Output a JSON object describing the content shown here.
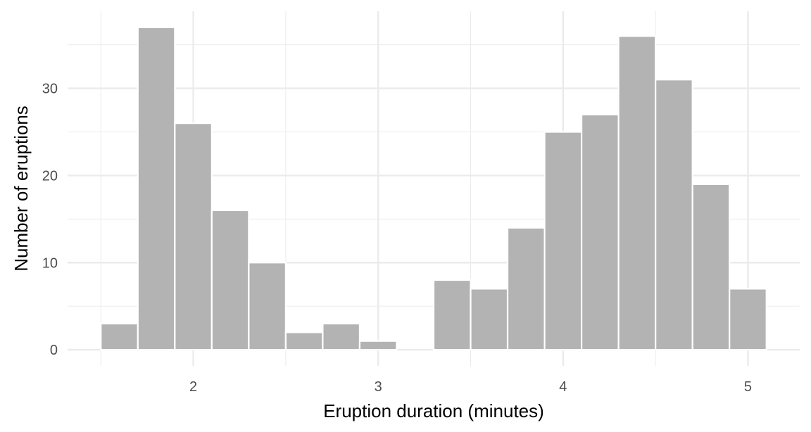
{
  "chart_data": {
    "type": "bar",
    "subtype": "histogram",
    "title": "",
    "xlabel": "Eruption duration (minutes)",
    "ylabel": "Number of eruptions",
    "bin_width": 0.2,
    "bins": [
      {
        "start": 1.5,
        "end": 1.7,
        "count": 3
      },
      {
        "start": 1.7,
        "end": 1.9,
        "count": 37
      },
      {
        "start": 1.9,
        "end": 2.1,
        "count": 26
      },
      {
        "start": 2.1,
        "end": 2.3,
        "count": 16
      },
      {
        "start": 2.3,
        "end": 2.5,
        "count": 10
      },
      {
        "start": 2.5,
        "end": 2.7,
        "count": 2
      },
      {
        "start": 2.7,
        "end": 2.9,
        "count": 3
      },
      {
        "start": 2.9,
        "end": 3.1,
        "count": 1
      },
      {
        "start": 3.1,
        "end": 3.3,
        "count": 0
      },
      {
        "start": 3.3,
        "end": 3.5,
        "count": 8
      },
      {
        "start": 3.5,
        "end": 3.7,
        "count": 7
      },
      {
        "start": 3.7,
        "end": 3.9,
        "count": 14
      },
      {
        "start": 3.9,
        "end": 4.1,
        "count": 25
      },
      {
        "start": 4.1,
        "end": 4.3,
        "count": 27
      },
      {
        "start": 4.3,
        "end": 4.5,
        "count": 36
      },
      {
        "start": 4.5,
        "end": 4.7,
        "count": 31
      },
      {
        "start": 4.7,
        "end": 4.9,
        "count": 19
      },
      {
        "start": 4.9,
        "end": 5.1,
        "count": 7
      }
    ],
    "xlim": [
      1.32,
      5.28
    ],
    "ylim": [
      -1.85,
      38.85
    ],
    "x_ticks": [
      2,
      3,
      4,
      5
    ],
    "x_minor": [
      1.5,
      2.5,
      3.5,
      4.5
    ],
    "y_ticks": [
      0,
      10,
      20,
      30
    ],
    "y_minor": [
      5,
      15,
      25,
      35
    ],
    "grid": true,
    "legend": "none",
    "bar_color": "#b3b3b3",
    "bar_outline": "#ffffff",
    "grid_color": "#ebebeb"
  }
}
